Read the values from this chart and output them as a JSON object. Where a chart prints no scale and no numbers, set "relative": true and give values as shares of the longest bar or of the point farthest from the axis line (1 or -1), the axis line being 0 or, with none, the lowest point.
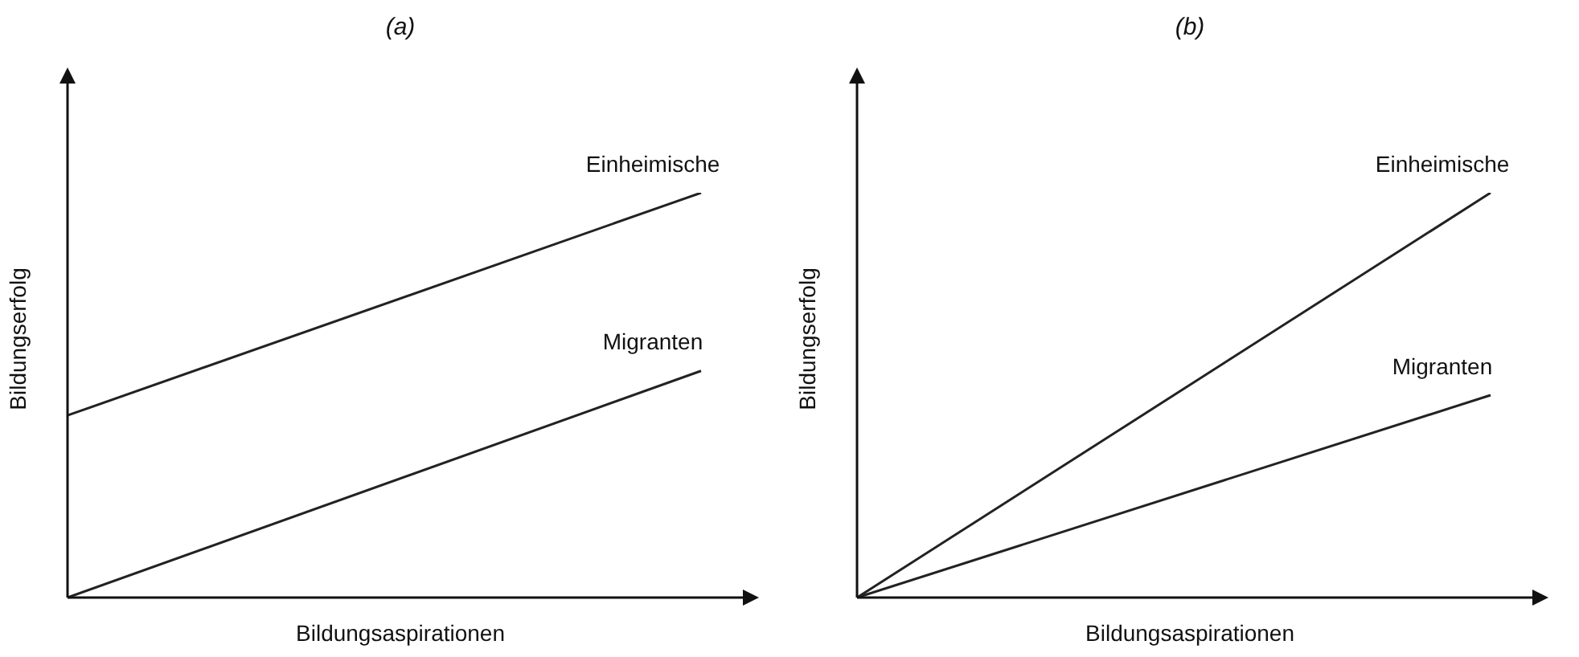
{
  "chart_data": [
    {
      "type": "line",
      "title": "(a)",
      "xlabel": "Bildungsaspirationen",
      "ylabel": "Bildungserfolg",
      "relative": true,
      "categories": [
        null,
        null
      ],
      "legend": false,
      "tick_labels": false,
      "marker": "none",
      "line_style": "solid",
      "series": [
        {
          "name": "Einheimische",
          "color": "#222222",
          "values": [
            0.45,
            1
          ]
        },
        {
          "name": "Migranten",
          "color": "#222222",
          "values": [
            0,
            0.56
          ]
        }
      ]
    },
    {
      "type": "line",
      "title": "(b)",
      "xlabel": "Bildungsaspirationen",
      "ylabel": "Bildungserfolg",
      "relative": true,
      "categories": [
        null,
        null
      ],
      "legend": false,
      "tick_labels": false,
      "marker": "none",
      "line_style": "solid",
      "series": [
        {
          "name": "Einheimische",
          "color": "#222222",
          "values": [
            0,
            1
          ]
        },
        {
          "name": "Migranten",
          "color": "#222222",
          "values": [
            0,
            0.5
          ]
        }
      ]
    }
  ]
}
